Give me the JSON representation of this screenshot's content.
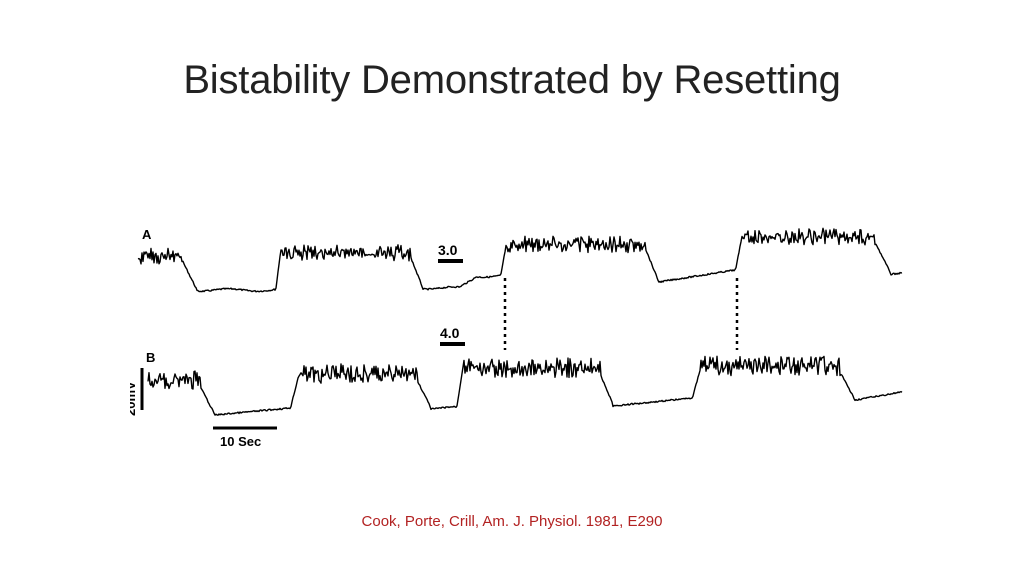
{
  "slide": {
    "title": "Bistability Demonstrated by Resetting",
    "citation": "Cook, Porte, Crill, Am. J. Physiol. 1981, E290",
    "citation_color": "#b22222"
  },
  "figure": {
    "trace_a_label": "A",
    "trace_b_label": "B",
    "stim_a_label": "3.0",
    "stim_b_label": "4.0",
    "voltage_scale_label": "20mV",
    "time_scale_label": "10 Sec",
    "trace_color": "#000000"
  }
}
